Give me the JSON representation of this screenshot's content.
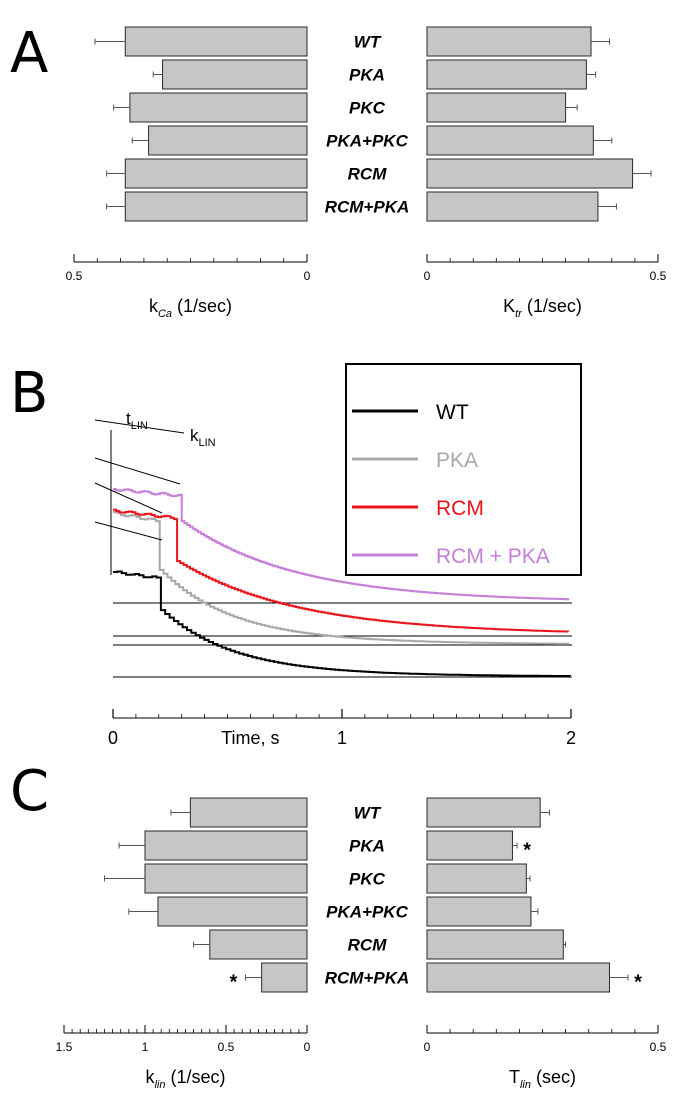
{
  "panels": {
    "a": "A",
    "b": "B",
    "c": "C"
  },
  "chart_data": [
    {
      "id": "A-left",
      "type": "bar",
      "orientation": "horizontal",
      "reversed_axis": true,
      "categories": [
        "WT",
        "PKA",
        "PKC",
        "PKA+PKC",
        "RCM",
        "RCM+PKA"
      ],
      "values": [
        0.39,
        0.31,
        0.38,
        0.34,
        0.39,
        0.39
      ],
      "errors": [
        0.065,
        0.02,
        0.035,
        0.035,
        0.04,
        0.04
      ],
      "xlim": [
        0.5,
        0
      ],
      "ticks": [
        0.5,
        0
      ],
      "tick_labels": [
        "0.5",
        "0"
      ],
      "xlabel_main": "k",
      "xlabel_sub": "Ca",
      "xlabel_unit": " (1/sec)"
    },
    {
      "id": "A-right",
      "type": "bar",
      "orientation": "horizontal",
      "categories": [
        "WT",
        "PKA",
        "PKC",
        "PKA+PKC",
        "RCM",
        "RCM+PKA"
      ],
      "values": [
        0.355,
        0.345,
        0.3,
        0.36,
        0.445,
        0.37
      ],
      "errors": [
        0.04,
        0.02,
        0.025,
        0.04,
        0.04,
        0.04
      ],
      "xlim": [
        0,
        0.5
      ],
      "ticks": [
        0,
        0.5
      ],
      "tick_labels": [
        "0",
        "0.5"
      ],
      "xlabel_main": "K",
      "xlabel_sub": "tr",
      "xlabel_unit": " (1/sec)"
    },
    {
      "id": "B",
      "type": "line",
      "xlim": [
        0,
        2
      ],
      "ticks": [
        0,
        1,
        2
      ],
      "tick_labels": [
        "0",
        "1",
        "2"
      ],
      "xlabel": "Time, s",
      "annotations": {
        "t_main": "t",
        "t_sub": "LIN",
        "k_main": "k",
        "k_sub": "LIN"
      },
      "legend_position": "top-right",
      "series": [
        {
          "name": "WT",
          "color": "#000000",
          "pre": 1.0,
          "plateau": 0.36,
          "t_drop": 0.2,
          "tau": 0.3,
          "step": 0.019
        },
        {
          "name": "PKA",
          "color": "#a8a8a8",
          "pre": 1.1,
          "plateau": 0.43,
          "t_drop": 0.19,
          "tau": 0.3,
          "step": 0.017
        },
        {
          "name": "RCM",
          "color": "#e8141c",
          "pre": 1.14,
          "plateau": 0.41,
          "t_drop": 0.27,
          "tau": 0.5,
          "step": 0.014
        },
        {
          "name": "RCM + PKA",
          "color": "#c57fd6",
          "pre": 0.99,
          "plateau": 0.28,
          "t_drop": 0.3,
          "tau": 0.48,
          "step": 0.012
        }
      ]
    },
    {
      "id": "C-left",
      "type": "bar",
      "orientation": "horizontal",
      "reversed_axis": true,
      "categories": [
        "WT",
        "PKA",
        "PKC",
        "PKA+PKC",
        "RCM",
        "RCM+PKA"
      ],
      "values": [
        0.72,
        1.0,
        1.0,
        0.92,
        0.6,
        0.28
      ],
      "errors": [
        0.12,
        0.16,
        0.25,
        0.18,
        0.1,
        0.1
      ],
      "significant": [
        false,
        false,
        false,
        false,
        false,
        true
      ],
      "xlim": [
        1.5,
        0
      ],
      "ticks": [
        1.5,
        1,
        0.5,
        0
      ],
      "tick_labels": [
        "1.5",
        "1",
        "0.5",
        "0"
      ],
      "xlabel_main": "k",
      "xlabel_sub": "lin",
      "xlabel_unit": " (1/sec)"
    },
    {
      "id": "C-right",
      "type": "bar",
      "orientation": "horizontal",
      "categories": [
        "WT",
        "PKA",
        "PKC",
        "PKA+PKC",
        "RCM",
        "RCM+PKA"
      ],
      "values": [
        0.245,
        0.185,
        0.215,
        0.225,
        0.295,
        0.395
      ],
      "errors": [
        0.02,
        0.01,
        0.008,
        0.015,
        0.005,
        0.04
      ],
      "significant": [
        false,
        true,
        false,
        false,
        false,
        true
      ],
      "xlim": [
        0,
        0.5
      ],
      "ticks": [
        0,
        0.5
      ],
      "tick_labels": [
        "0",
        "0.5"
      ],
      "xlabel_main": "T",
      "xlabel_sub": "lin",
      "xlabel_unit": " (sec)"
    }
  ]
}
